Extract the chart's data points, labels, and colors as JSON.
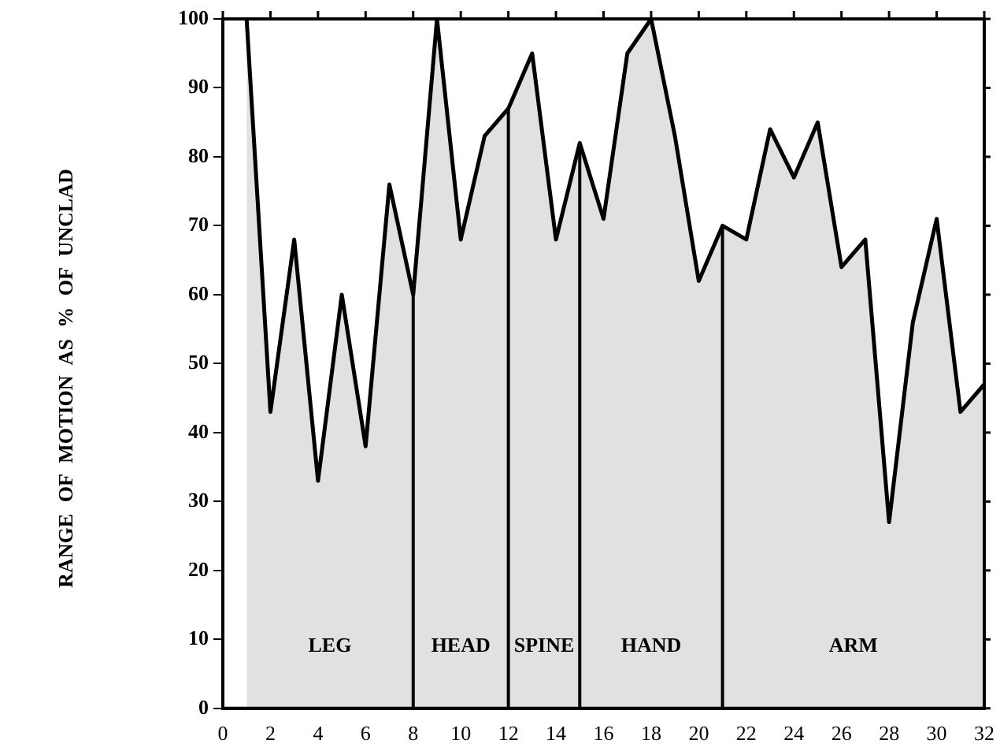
{
  "chart_data": {
    "type": "area",
    "ylabel": "RANGE OF MOTION AS % OF UNCLAD",
    "x": [
      1,
      2,
      3,
      4,
      5,
      6,
      7,
      8,
      9,
      10,
      11,
      12,
      13,
      14,
      15,
      16,
      17,
      18,
      19,
      20,
      21,
      22,
      23,
      24,
      25,
      26,
      27,
      28,
      29,
      30,
      31,
      32
    ],
    "series": [
      {
        "color": "#000000",
        "values": [
          100,
          43,
          68,
          33,
          60,
          38,
          76,
          60,
          100,
          68,
          83,
          87,
          95,
          68,
          82,
          71,
          95,
          100,
          83,
          62,
          70,
          68,
          84,
          77,
          85,
          64,
          68,
          27,
          56,
          71,
          43,
          47
        ]
      }
    ],
    "xlim": [
      0,
      32
    ],
    "xticks": [
      0,
      2,
      4,
      6,
      8,
      10,
      12,
      14,
      16,
      18,
      20,
      22,
      24,
      26,
      28,
      30,
      32
    ],
    "ylim": [
      0,
      100
    ],
    "yticks": [
      0,
      10,
      20,
      30,
      40,
      50,
      60,
      70,
      80,
      90,
      100
    ],
    "ref_lines": [
      {
        "axis": "x",
        "value": 8
      },
      {
        "axis": "x",
        "value": 12
      },
      {
        "axis": "x",
        "value": 15
      },
      {
        "axis": "x",
        "value": 21
      }
    ],
    "annotations": [
      "LEG",
      "HEAD",
      "SPINE",
      "HAND",
      "ARM"
    ],
    "grid": false,
    "legend": false,
    "marker": "none",
    "line_style": "solid"
  }
}
